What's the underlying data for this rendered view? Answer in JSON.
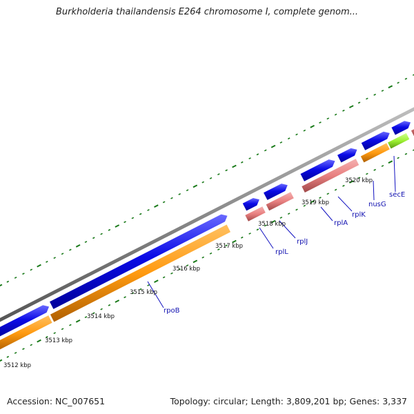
{
  "header": {
    "title": "Burkholderia thailandensis E264 chromosome I, complete genom..."
  },
  "footer": {
    "accession": "Accession: NC_007651",
    "summary": "Topology: circular; Length: 3,809,201 bp; Genes: 3,337"
  },
  "colors": {
    "backbone": "#8a8a8a",
    "cds_forward": "#0a0ae6",
    "gene_orange": "#ff9a10",
    "gene_pink": "#e88080",
    "gene_lime": "#9cf032",
    "small_cyan": "#33c8e8",
    "tick_green": "#1a7a1a",
    "label_line": "#1010c0",
    "label_text": "#1010b0"
  },
  "ruler": [
    {
      "label": "3512 kbp",
      "kbp": 3512
    },
    {
      "label": "3513 kbp",
      "kbp": 3513
    },
    {
      "label": "3514 kbp",
      "kbp": 3514
    },
    {
      "label": "3515 kbp",
      "kbp": 3515
    },
    {
      "label": "3516 kbp",
      "kbp": 3516
    },
    {
      "label": "3517 kbp",
      "kbp": 3517
    },
    {
      "label": "3518 kbp",
      "kbp": 3518
    },
    {
      "label": "3519 kbp",
      "kbp": 3519
    },
    {
      "label": "3520 kbp",
      "kbp": 3520
    }
  ],
  "gene_labels": [
    {
      "name": "rpoB"
    },
    {
      "name": "rplL"
    },
    {
      "name": "rplJ"
    },
    {
      "name": "rplA"
    },
    {
      "name": "rplK"
    },
    {
      "name": "nusG"
    },
    {
      "name": "secE"
    }
  ]
}
